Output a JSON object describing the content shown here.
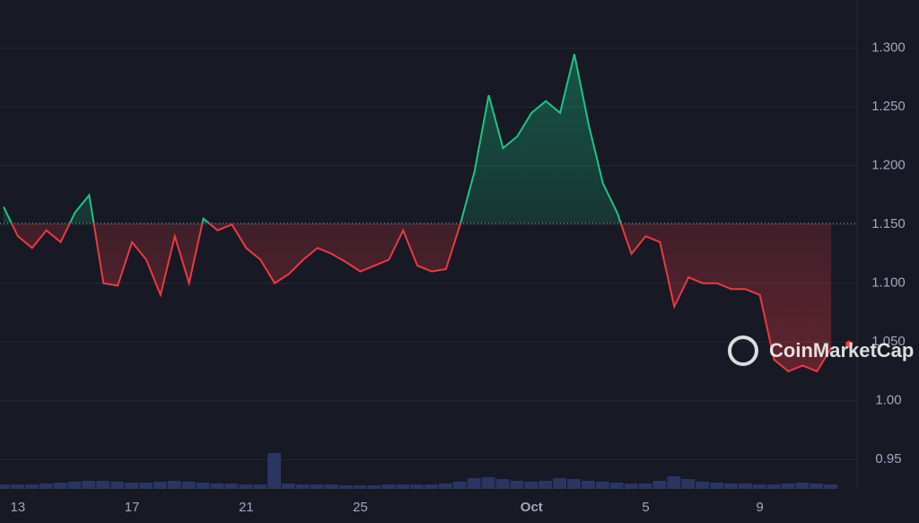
{
  "chart_data": {
    "type": "line",
    "categories": [
      null,
      "13",
      null,
      null,
      null,
      null,
      null,
      null,
      null,
      "17",
      null,
      null,
      null,
      null,
      null,
      null,
      null,
      "21",
      null,
      null,
      null,
      null,
      null,
      null,
      null,
      "25",
      null,
      null,
      null,
      null,
      null,
      null,
      null,
      null,
      null,
      null,
      null,
      "Oct",
      null,
      null,
      null,
      null,
      null,
      null,
      null,
      "5",
      null,
      null,
      null,
      null,
      null,
      null,
      null,
      "9",
      null,
      null,
      null,
      null,
      null
    ],
    "values": [
      1.165,
      1.14,
      1.13,
      1.145,
      1.135,
      1.16,
      1.175,
      1.1,
      1.098,
      1.135,
      1.12,
      1.09,
      1.14,
      1.1,
      1.155,
      1.145,
      1.15,
      1.13,
      1.12,
      1.1,
      1.108,
      1.12,
      1.13,
      1.125,
      1.118,
      1.11,
      1.115,
      1.12,
      1.145,
      1.115,
      1.11,
      1.112,
      1.15,
      1.195,
      1.26,
      1.215,
      1.225,
      1.245,
      1.255,
      1.245,
      1.295,
      1.235,
      1.185,
      1.16,
      1.125,
      1.14,
      1.135,
      1.08,
      1.105,
      1.1,
      1.1,
      1.095,
      1.095,
      1.09,
      1.035,
      1.025,
      1.03,
      1.025,
      1.045
    ],
    "volume": [
      5,
      5,
      5,
      6,
      7,
      8,
      9,
      9,
      8,
      7,
      7,
      8,
      9,
      8,
      7,
      6,
      6,
      5,
      5,
      40,
      6,
      5,
      5,
      5,
      4,
      4,
      4,
      5,
      5,
      5,
      5,
      6,
      8,
      12,
      13,
      11,
      9,
      8,
      9,
      12,
      11,
      9,
      8,
      7,
      6,
      6,
      9,
      14,
      11,
      8,
      7,
      6,
      6,
      5,
      5,
      6,
      7,
      6,
      5
    ],
    "up_color": "#16c784",
    "down_color": "#ea3943",
    "volume_color": "#2a3560",
    "baseline": 1.151,
    "ylim": [
      0.925,
      1.341
    ],
    "yticks": [
      0.95,
      {
        "value": 1.0,
        "label": "1.00"
      },
      {
        "value": 1.05,
        "label": "1.050"
      },
      {
        "value": 1.1,
        "label": "1.100"
      },
      {
        "value": 1.15,
        "label": "1.150"
      },
      {
        "value": 1.2,
        "label": "1.200"
      },
      {
        "value": 1.25,
        "label": "1.250"
      },
      {
        "value": 1.3,
        "label": "1.300"
      }
    ],
    "grid": true,
    "watermark": "CoinMarketCap"
  }
}
